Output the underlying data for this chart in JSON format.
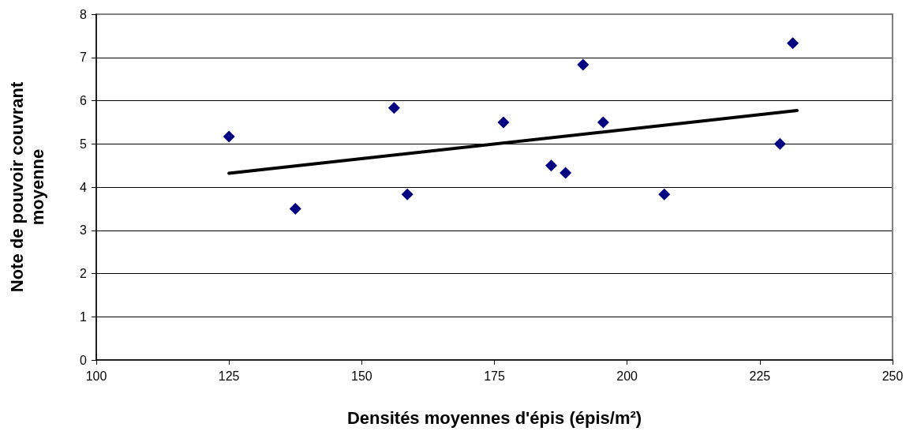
{
  "chart_data": {
    "type": "scatter",
    "xlabel": "Densités moyennes d'épis (épis/m²)",
    "ylabel": "Note de pouvoir couvrant\nmoyenne",
    "series": [
      {
        "color": "#000080",
        "marker": "diamond",
        "x": [
          125,
          137.5,
          156.1,
          158.6,
          176.7,
          185.7,
          188.4,
          191.7,
          195.5,
          207,
          228.8,
          231.2
        ],
        "values": [
          5.17,
          3.5,
          5.83,
          3.83,
          5.5,
          4.5,
          4.33,
          6.83,
          5.5,
          3.83,
          5.0,
          7.33
        ]
      },
      {
        "type": "line",
        "color": "#000000",
        "marker": "none",
        "x": [
          125,
          232
        ],
        "values": [
          4.32,
          5.77
        ]
      }
    ],
    "xlim": [
      100,
      250
    ],
    "xticks": [
      100,
      125,
      150,
      175,
      200,
      225,
      250
    ],
    "ylim": [
      0,
      8
    ],
    "yticks": [
      0,
      1,
      2,
      3,
      4,
      5,
      6,
      7,
      8
    ],
    "grid": "y"
  }
}
